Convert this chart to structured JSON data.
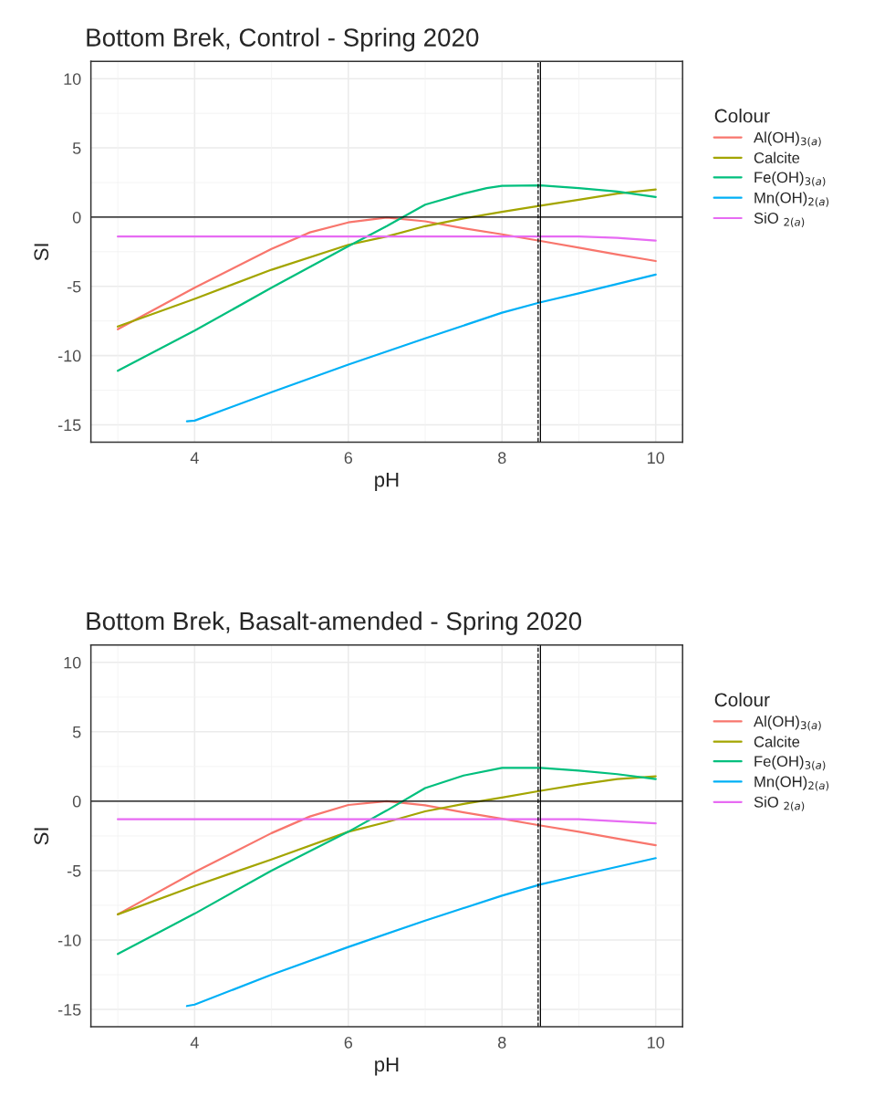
{
  "chart_data": [
    {
      "type": "line",
      "title": "Bottom Brek, Control - Spring 2020",
      "xlabel": "pH",
      "ylabel": "SI",
      "legend_title": "Colour",
      "legend": "right",
      "grid": true,
      "xlim": [
        2.65,
        10.35
      ],
      "ylim": [
        -16.25,
        11.25
      ],
      "xticks": [
        4,
        6,
        8,
        10
      ],
      "yticks": [
        -15,
        -10,
        -5,
        0,
        5,
        10
      ],
      "ref_lines": [
        {
          "axis": "y",
          "value": 0,
          "color": "#000000",
          "line_style": "solid"
        },
        {
          "axis": "x",
          "value": 8.47,
          "color": "#000000",
          "line_style": "dashed"
        },
        {
          "axis": "x",
          "value": 8.5,
          "color": "#000000",
          "line_style": "solid"
        }
      ],
      "series": [
        {
          "name": "Al(OH)$_{3(a)}$",
          "color": "#f8766d",
          "x": [
            3,
            4,
            5,
            5.5,
            6,
            6.5,
            7,
            7.5,
            8,
            8.5,
            9,
            9.5,
            10
          ],
          "values": [
            -8.1,
            -5.1,
            -2.3,
            -1.1,
            -0.38,
            -0.03,
            -0.3,
            -0.8,
            -1.24,
            -1.72,
            -2.2,
            -2.7,
            -3.17
          ]
        },
        {
          "name": "Calcite",
          "color": "#a3a500",
          "x": [
            3,
            4,
            5,
            6,
            6.5,
            7,
            7.5,
            8,
            8.5,
            9,
            9.5,
            10
          ],
          "values": [
            -7.9,
            -5.9,
            -3.8,
            -2.0,
            -1.4,
            -0.65,
            -0.1,
            0.38,
            0.83,
            1.26,
            1.7,
            2.0
          ]
        },
        {
          "name": "Fe(OH)$_{3(a)}$",
          "color": "#00bf7d",
          "x": [
            3,
            4,
            5,
            6,
            6.5,
            7,
            7.5,
            7.8,
            8,
            8.5,
            9,
            9.5,
            10
          ],
          "values": [
            -11.1,
            -8.2,
            -5.1,
            -2.1,
            -0.65,
            0.9,
            1.7,
            2.1,
            2.26,
            2.3,
            2.1,
            1.85,
            1.45
          ]
        },
        {
          "name": "Mn(OH)$_{2(a)}$",
          "color": "#00b0f6",
          "x": [
            3.9,
            4,
            5,
            6,
            7,
            8,
            8.5,
            9,
            10
          ],
          "values": [
            -14.75,
            -14.7,
            -12.65,
            -10.65,
            -8.76,
            -6.9,
            -6.15,
            -5.5,
            -4.15
          ]
        },
        {
          "name": "SiO $_{2(a)}$",
          "color": "#e76bf3",
          "x": [
            3,
            9,
            9.5,
            10
          ],
          "values": [
            -1.4,
            -1.4,
            -1.5,
            -1.7
          ]
        }
      ]
    },
    {
      "type": "line",
      "title": "Bottom Brek, Basalt-amended - Spring 2020",
      "xlabel": "pH",
      "ylabel": "SI",
      "legend_title": "Colour",
      "legend": "right",
      "grid": true,
      "xlim": [
        2.65,
        10.35
      ],
      "ylim": [
        -16.25,
        11.25
      ],
      "xticks": [
        4,
        6,
        8,
        10
      ],
      "yticks": [
        -15,
        -10,
        -5,
        0,
        5,
        10
      ],
      "ref_lines": [
        {
          "axis": "y",
          "value": 0,
          "color": "#000000",
          "line_style": "solid"
        },
        {
          "axis": "x",
          "value": 8.47,
          "color": "#000000",
          "line_style": "dashed"
        },
        {
          "axis": "x",
          "value": 8.5,
          "color": "#000000",
          "line_style": "solid"
        }
      ],
      "series": [
        {
          "name": "Al(OH)$_{3(a)}$",
          "color": "#f8766d",
          "x": [
            3,
            4,
            5,
            5.5,
            6,
            6.5,
            7,
            7.5,
            8,
            8.5,
            9,
            9.5,
            10
          ],
          "values": [
            -8.15,
            -5.1,
            -2.3,
            -1.1,
            -0.27,
            0,
            -0.3,
            -0.8,
            -1.26,
            -1.75,
            -2.2,
            -2.7,
            -3.17
          ]
        },
        {
          "name": "Calcite",
          "color": "#a3a500",
          "x": [
            3,
            4,
            5,
            6,
            6.5,
            7,
            7.5,
            8,
            8.5,
            9,
            9.5,
            10
          ],
          "values": [
            -8.15,
            -6.1,
            -4.2,
            -2.2,
            -1.5,
            -0.73,
            -0.2,
            0.27,
            0.75,
            1.2,
            1.6,
            1.8
          ]
        },
        {
          "name": "Fe(OH)$_{3(a)}$",
          "color": "#00bf7d",
          "x": [
            3,
            4,
            5,
            6,
            6.5,
            7,
            7.5,
            8,
            8.5,
            9,
            9.5,
            10
          ],
          "values": [
            -11.0,
            -8.1,
            -5.0,
            -2.2,
            -0.67,
            0.95,
            1.85,
            2.4,
            2.4,
            2.2,
            1.95,
            1.6
          ]
        },
        {
          "name": "Mn(OH)$_{2(a)}$",
          "color": "#00b0f6",
          "x": [
            3.9,
            4,
            5,
            6,
            7,
            8,
            8.5,
            9,
            10
          ],
          "values": [
            -14.75,
            -14.65,
            -12.5,
            -10.5,
            -8.6,
            -6.8,
            -6.0,
            -5.35,
            -4.1
          ]
        },
        {
          "name": "SiO $_{2(a)}$",
          "color": "#e76bf3",
          "x": [
            3,
            9,
            9.5,
            10
          ],
          "values": [
            -1.3,
            -1.3,
            -1.45,
            -1.6
          ]
        }
      ]
    }
  ]
}
